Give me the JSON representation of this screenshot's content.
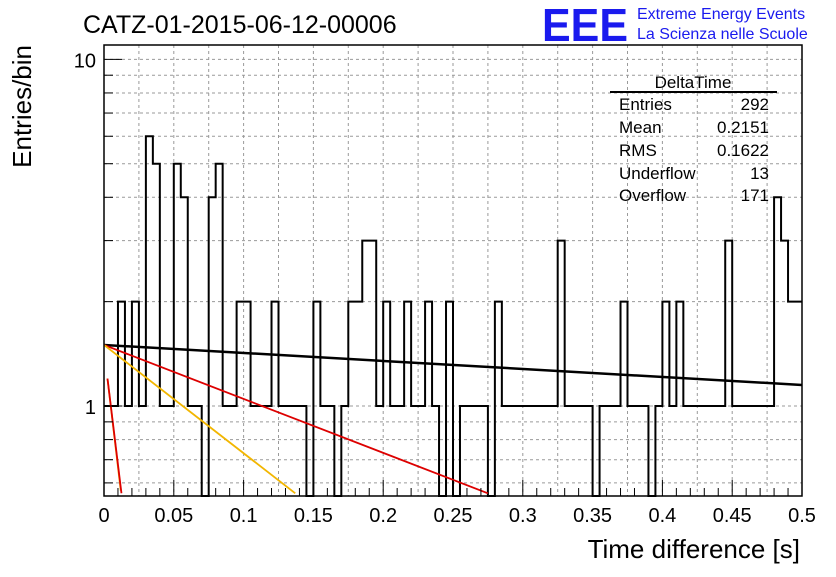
{
  "header": {
    "title": "CATZ-01-2015-06-12-00006",
    "logo_text": "EEE",
    "logo_line1": "Extreme Energy Events",
    "logo_line2": "La Scienza nelle Scuole",
    "logo_color": "#1a1aee"
  },
  "stats_box": {
    "title": "DeltaTime",
    "rows": [
      {
        "label": "Entries",
        "value": "292"
      },
      {
        "label": "Mean",
        "value": "0.2151"
      },
      {
        "label": "RMS",
        "value": "0.1622"
      },
      {
        "label": "Underflow",
        "value": "13"
      },
      {
        "label": "Overflow",
        "value": "171"
      }
    ]
  },
  "chart_data": {
    "type": "histogram",
    "title": "CATZ-01-2015-06-12-00006",
    "xlabel": "Time difference [s]",
    "ylabel": "Entries/bin",
    "xlim": [
      0,
      0.5
    ],
    "ylim": [
      0.55,
      11
    ],
    "y_scale": "log",
    "grid": true,
    "bin_width": 0.005,
    "x_ticks": [
      "0",
      "0.05",
      "0.1",
      "0.15",
      "0.2",
      "0.25",
      "0.3",
      "0.35",
      "0.4",
      "0.45",
      "0.5"
    ],
    "y_ticks": [
      "1",
      "10"
    ],
    "values": [
      1,
      1,
      2,
      1,
      2,
      1,
      6,
      5,
      1,
      1,
      5,
      4,
      1,
      1,
      0,
      4,
      5,
      1,
      1,
      2,
      2,
      1,
      1,
      1,
      2,
      1,
      1,
      1,
      1,
      0,
      2,
      1,
      1,
      0,
      1,
      2,
      2,
      3,
      3,
      1,
      2,
      1,
      1,
      2,
      1,
      1,
      2,
      1,
      0,
      2,
      0,
      1,
      1,
      1,
      1,
      0,
      2,
      1,
      1,
      1,
      1,
      1,
      1,
      1,
      1,
      3,
      1,
      1,
      1,
      1,
      0,
      1,
      1,
      1,
      2,
      1,
      1,
      1,
      0,
      1,
      2,
      1,
      2,
      1,
      1,
      1,
      1,
      1,
      1,
      3,
      1,
      1,
      1,
      1,
      1,
      1,
      4,
      3,
      2,
      2
    ],
    "fit_lines": [
      {
        "color": "#000000",
        "x": [
          0,
          0.5
        ],
        "y": [
          1.5,
          1.15
        ]
      },
      {
        "color": "#dd0000",
        "x": [
          0,
          0.275
        ],
        "y": [
          1.5,
          0.56
        ]
      },
      {
        "color": "#f2b600",
        "x": [
          0,
          0.137
        ],
        "y": [
          1.5,
          0.56
        ]
      },
      {
        "color": "#f2b600",
        "x": [
          0.0025,
          0.012
        ],
        "y": [
          1.2,
          0.57
        ]
      },
      {
        "color": "#dd0000",
        "x": [
          0.0025,
          0.0125
        ],
        "y": [
          1.2,
          0.56
        ]
      }
    ]
  }
}
